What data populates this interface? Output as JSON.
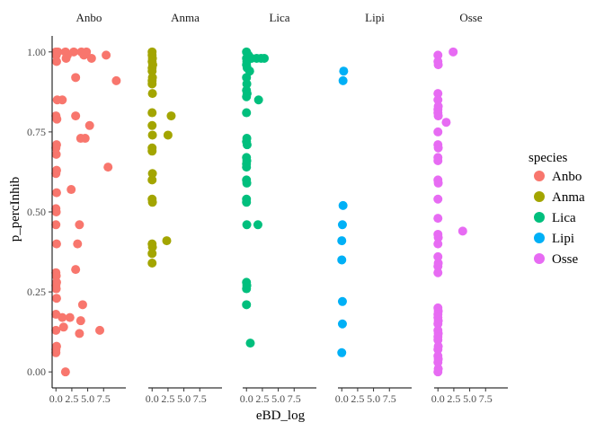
{
  "chart_data": {
    "type": "scatter",
    "title": "",
    "xlabel": "eBD_log",
    "ylabel": "p_percInhib",
    "xlim": [
      -0.6,
      11.0
    ],
    "ylim": [
      -0.05,
      1.05
    ],
    "x_ticks": [
      0.0,
      2.5,
      5.0,
      7.5
    ],
    "x_tick_labels": [
      "0.0",
      "2.5",
      "5.0",
      "7.5"
    ],
    "y_ticks": [
      0.0,
      0.25,
      0.5,
      0.75,
      1.0
    ],
    "y_tick_labels": [
      "0.00",
      "0.25",
      "0.50",
      "0.75",
      "1.00"
    ],
    "grid": false,
    "facets": [
      "Anbo",
      "Anma",
      "Lica",
      "Lipi",
      "Osse"
    ],
    "legend": {
      "title": "species",
      "position": "right",
      "entries": [
        "Anbo",
        "Anma",
        "Lica",
        "Lipi",
        "Osse"
      ]
    },
    "colors": {
      "Anbo": "#F8766D",
      "Anma": "#A3A500",
      "Lica": "#00BF7D",
      "Lipi": "#00B0F6",
      "Osse": "#E76BF3"
    },
    "series": [
      {
        "name": "Anbo",
        "points": [
          [
            0.0,
            1.0
          ],
          [
            0.05,
            0.99
          ],
          [
            0.1,
            0.97
          ],
          [
            0.3,
            1.0
          ],
          [
            1.5,
            1.0
          ],
          [
            1.8,
            0.99
          ],
          [
            1.6,
            0.98
          ],
          [
            2.8,
            1.0
          ],
          [
            4.0,
            1.0
          ],
          [
            4.4,
            0.99
          ],
          [
            4.8,
            1.0
          ],
          [
            5.6,
            0.98
          ],
          [
            7.9,
            0.99
          ],
          [
            9.5,
            0.91
          ],
          [
            3.1,
            0.92
          ],
          [
            0.2,
            0.85
          ],
          [
            1.0,
            0.85
          ],
          [
            0.0,
            0.8
          ],
          [
            0.15,
            0.79
          ],
          [
            3.1,
            0.8
          ],
          [
            5.3,
            0.77
          ],
          [
            3.9,
            0.73
          ],
          [
            4.6,
            0.73
          ],
          [
            0.1,
            0.71
          ],
          [
            0.0,
            0.7
          ],
          [
            0.05,
            0.68
          ],
          [
            8.2,
            0.64
          ],
          [
            0.1,
            0.63
          ],
          [
            0.0,
            0.62
          ],
          [
            2.4,
            0.57
          ],
          [
            0.1,
            0.56
          ],
          [
            0.0,
            0.51
          ],
          [
            0.05,
            0.5
          ],
          [
            0.0,
            0.46
          ],
          [
            3.7,
            0.46
          ],
          [
            0.1,
            0.4
          ],
          [
            3.4,
            0.4
          ],
          [
            3.1,
            0.32
          ],
          [
            0.0,
            0.31
          ],
          [
            0.05,
            0.3
          ],
          [
            0.1,
            0.28
          ],
          [
            0.0,
            0.27
          ],
          [
            0.05,
            0.26
          ],
          [
            4.2,
            0.21
          ],
          [
            0.1,
            0.23
          ],
          [
            0.0,
            0.18
          ],
          [
            1.0,
            0.17
          ],
          [
            2.2,
            0.17
          ],
          [
            3.9,
            0.16
          ],
          [
            1.2,
            0.14
          ],
          [
            0.0,
            0.13
          ],
          [
            6.9,
            0.13
          ],
          [
            3.7,
            0.12
          ],
          [
            0.1,
            0.08
          ],
          [
            0.0,
            0.07
          ],
          [
            0.0,
            0.06
          ],
          [
            1.5,
            0.0
          ]
        ]
      },
      {
        "name": "Anma",
        "points": [
          [
            0.0,
            1.0
          ],
          [
            0.0,
            0.99
          ],
          [
            0.05,
            0.98
          ],
          [
            0.0,
            0.97
          ],
          [
            0.1,
            0.96
          ],
          [
            0.0,
            0.95
          ],
          [
            0.0,
            0.94
          ],
          [
            0.05,
            0.92
          ],
          [
            0.0,
            0.91
          ],
          [
            0.0,
            0.9
          ],
          [
            0.05,
            0.87
          ],
          [
            0.0,
            0.81
          ],
          [
            3.0,
            0.8
          ],
          [
            0.0,
            0.77
          ],
          [
            0.05,
            0.74
          ],
          [
            2.5,
            0.74
          ],
          [
            0.0,
            0.7
          ],
          [
            0.0,
            0.69
          ],
          [
            0.05,
            0.62
          ],
          [
            0.0,
            0.6
          ],
          [
            0.0,
            0.54
          ],
          [
            0.05,
            0.53
          ],
          [
            2.3,
            0.41
          ],
          [
            0.0,
            0.4
          ],
          [
            0.05,
            0.39
          ],
          [
            0.0,
            0.37
          ],
          [
            0.0,
            0.34
          ]
        ]
      },
      {
        "name": "Lica",
        "points": [
          [
            0.0,
            1.0
          ],
          [
            0.3,
            0.99
          ],
          [
            0.0,
            0.98
          ],
          [
            0.8,
            0.98
          ],
          [
            1.6,
            0.98
          ],
          [
            2.3,
            0.98
          ],
          [
            2.8,
            0.98
          ],
          [
            0.05,
            0.97
          ],
          [
            0.0,
            0.96
          ],
          [
            0.1,
            0.95
          ],
          [
            0.5,
            0.94
          ],
          [
            0.0,
            0.92
          ],
          [
            0.05,
            0.9
          ],
          [
            0.0,
            0.88
          ],
          [
            0.1,
            0.87
          ],
          [
            0.0,
            0.86
          ],
          [
            1.9,
            0.85
          ],
          [
            0.0,
            0.81
          ],
          [
            0.05,
            0.73
          ],
          [
            0.0,
            0.72
          ],
          [
            0.1,
            0.71
          ],
          [
            0.0,
            0.67
          ],
          [
            0.05,
            0.66
          ],
          [
            0.0,
            0.65
          ],
          [
            0.0,
            0.64
          ],
          [
            0.0,
            0.6
          ],
          [
            0.05,
            0.59
          ],
          [
            0.0,
            0.54
          ],
          [
            0.0,
            0.53
          ],
          [
            0.05,
            0.46
          ],
          [
            1.8,
            0.46
          ],
          [
            0.0,
            0.28
          ],
          [
            0.05,
            0.27
          ],
          [
            0.0,
            0.26
          ],
          [
            0.0,
            0.21
          ],
          [
            0.6,
            0.09
          ]
        ]
      },
      {
        "name": "Lipi",
        "points": [
          [
            0.3,
            0.94
          ],
          [
            0.2,
            0.91
          ],
          [
            0.2,
            0.52
          ],
          [
            0.1,
            0.46
          ],
          [
            0.0,
            0.41
          ],
          [
            0.0,
            0.35
          ],
          [
            0.1,
            0.22
          ],
          [
            0.1,
            0.15
          ],
          [
            0.0,
            0.06
          ]
        ]
      },
      {
        "name": "Osse",
        "points": [
          [
            0.0,
            0.99
          ],
          [
            2.4,
            1.0
          ],
          [
            0.0,
            0.97
          ],
          [
            0.05,
            0.96
          ],
          [
            0.0,
            0.87
          ],
          [
            0.0,
            0.85
          ],
          [
            0.05,
            0.83
          ],
          [
            0.0,
            0.82
          ],
          [
            0.0,
            0.81
          ],
          [
            0.05,
            0.8
          ],
          [
            1.3,
            0.78
          ],
          [
            0.0,
            0.75
          ],
          [
            0.0,
            0.71
          ],
          [
            0.05,
            0.7
          ],
          [
            0.0,
            0.67
          ],
          [
            0.0,
            0.66
          ],
          [
            0.0,
            0.6
          ],
          [
            0.05,
            0.59
          ],
          [
            0.0,
            0.54
          ],
          [
            0.0,
            0.48
          ],
          [
            3.9,
            0.44
          ],
          [
            0.0,
            0.43
          ],
          [
            0.05,
            0.42
          ],
          [
            0.0,
            0.4
          ],
          [
            0.0,
            0.36
          ],
          [
            0.05,
            0.34
          ],
          [
            0.0,
            0.33
          ],
          [
            0.0,
            0.31
          ],
          [
            0.0,
            0.2
          ],
          [
            0.05,
            0.19
          ],
          [
            0.0,
            0.18
          ],
          [
            0.0,
            0.17
          ],
          [
            0.05,
            0.16
          ],
          [
            0.0,
            0.15
          ],
          [
            0.0,
            0.13
          ],
          [
            0.05,
            0.12
          ],
          [
            0.0,
            0.11
          ],
          [
            0.0,
            0.1
          ],
          [
            0.05,
            0.08
          ],
          [
            0.0,
            0.07
          ],
          [
            0.0,
            0.05
          ],
          [
            0.05,
            0.04
          ],
          [
            0.0,
            0.03
          ],
          [
            0.05,
            0.01
          ],
          [
            0.0,
            0.0
          ]
        ]
      }
    ]
  }
}
